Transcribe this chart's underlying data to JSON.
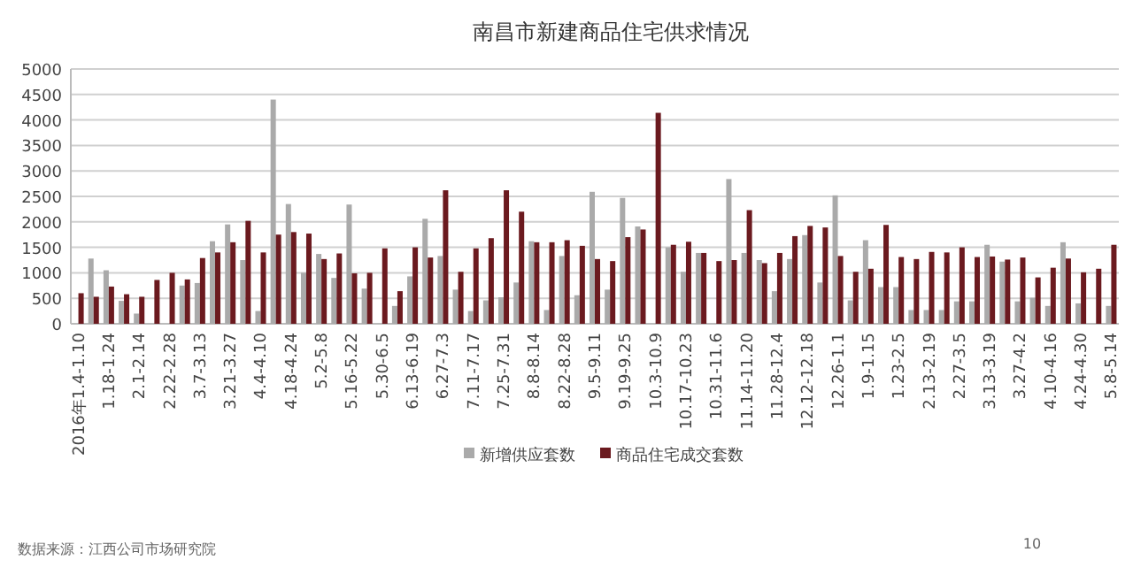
{
  "chart_data": {
    "type": "bar",
    "title": "南昌市新建商品住宅供求情况",
    "categories": [
      "2016年1.4-1.10",
      null,
      "1.18-1.24",
      null,
      "2.1-2.14",
      null,
      "2.22-2.28",
      null,
      "3.7-3.13",
      null,
      "3.21-3.27",
      null,
      "4.4-4.10",
      null,
      "4.18-4.24",
      null,
      "5.2-5.8",
      null,
      "5.16-5.22",
      null,
      "5.30-6.5",
      null,
      "6.13-6.19",
      null,
      "6.27-7.3",
      null,
      "7.11-7.17",
      null,
      "7.25-7.31",
      null,
      "8.8-8.14",
      null,
      "8.22-8.28",
      null,
      "9.5-9.11",
      null,
      "9.19-9.25",
      null,
      "10.3-10.9",
      null,
      "10.17-10.23",
      null,
      "10.31-11.6",
      null,
      "11.14-11.20",
      null,
      "11.28-12.4",
      null,
      "12.12-12.18",
      null,
      "12.26-1.1",
      null,
      "1.9-1.15",
      null,
      "1.23-2.5",
      null,
      "2.13-2.19",
      null,
      "2.27-3.5",
      null,
      "3.13-3.19",
      null,
      "3.27-4.2",
      null,
      "4.10-4.16",
      null,
      "4.24-4.30",
      null,
      "5.8-5.14"
    ],
    "series": [
      {
        "name": "新增供应套数",
        "color": "#aaaaaa",
        "values": [
          0,
          1280,
          1050,
          450,
          200,
          0,
          0,
          750,
          800,
          1620,
          1950,
          1250,
          250,
          4400,
          2350,
          1000,
          1370,
          900,
          2340,
          690,
          null,
          350,
          930,
          2060,
          1330,
          670,
          250,
          460,
          520,
          810,
          1620,
          270,
          1330,
          560,
          2590,
          670,
          2470,
          1910,
          0,
          1500,
          1020,
          1390,
          0,
          2840,
          1390,
          1250,
          640,
          1270,
          1740,
          810,
          2520,
          460,
          1640,
          720,
          720,
          270,
          270,
          270,
          440,
          440,
          1550,
          1220,
          440,
          510,
          350,
          1600,
          400,
          0,
          350
        ]
      },
      {
        "name": "商品住宅成交套数",
        "color": "#6b1a1f",
        "values": [
          600,
          530,
          730,
          580,
          530,
          860,
          1000,
          870,
          1290,
          1400,
          1600,
          2020,
          1400,
          1750,
          1800,
          1770,
          1270,
          1380,
          990,
          1000,
          1480,
          640,
          1500,
          1300,
          2620,
          1020,
          1480,
          1680,
          2620,
          2200,
          1600,
          1600,
          1640,
          1530,
          1270,
          1230,
          1700,
          1850,
          4140,
          1550,
          1610,
          1390,
          1230,
          1250,
          2230,
          1190,
          1390,
          1720,
          1920,
          1890,
          1330,
          1020,
          1080,
          1940,
          1310,
          1270,
          1410,
          1400,
          1500,
          1310,
          1320,
          1260,
          1300,
          910,
          1100,
          1280,
          1010,
          1080,
          1550
        ]
      }
    ],
    "ylim": [
      0,
      5000
    ],
    "yticks": [
      0,
      500,
      1000,
      1500,
      2000,
      2500,
      3000,
      3500,
      4000,
      4500,
      5000
    ],
    "grid": "y",
    "legend": "bottom",
    "annotations": [
      "数据来源：江西公司市场研究院",
      "10"
    ]
  }
}
